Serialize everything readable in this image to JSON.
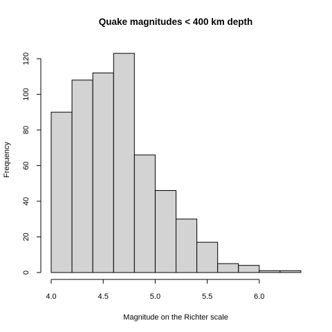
{
  "chart_data": {
    "type": "bar",
    "subtype": "histogram",
    "title": "Quake magnitudes < 400 km depth",
    "xlabel": "Magnitude on the Richter scale",
    "ylabel": "Frequency",
    "bin_edges": [
      4.0,
      4.2,
      4.4,
      4.6,
      4.8,
      5.0,
      5.2,
      5.4,
      5.6,
      5.8,
      6.0,
      6.2,
      6.4
    ],
    "values": [
      90,
      108,
      112,
      123,
      66,
      46,
      30,
      17,
      5,
      4,
      1,
      1
    ],
    "xlim": [
      4.0,
      6.4
    ],
    "ylim": [
      0,
      125
    ],
    "xticks": [
      "4.0",
      "4.5",
      "5.0",
      "5.5",
      "6.0"
    ],
    "yticks": [
      "0",
      "20",
      "40",
      "60",
      "80",
      "100",
      "120"
    ],
    "bar_color": "#d3d3d3",
    "edge_color": "#000000",
    "grid": false,
    "legend": "none"
  }
}
